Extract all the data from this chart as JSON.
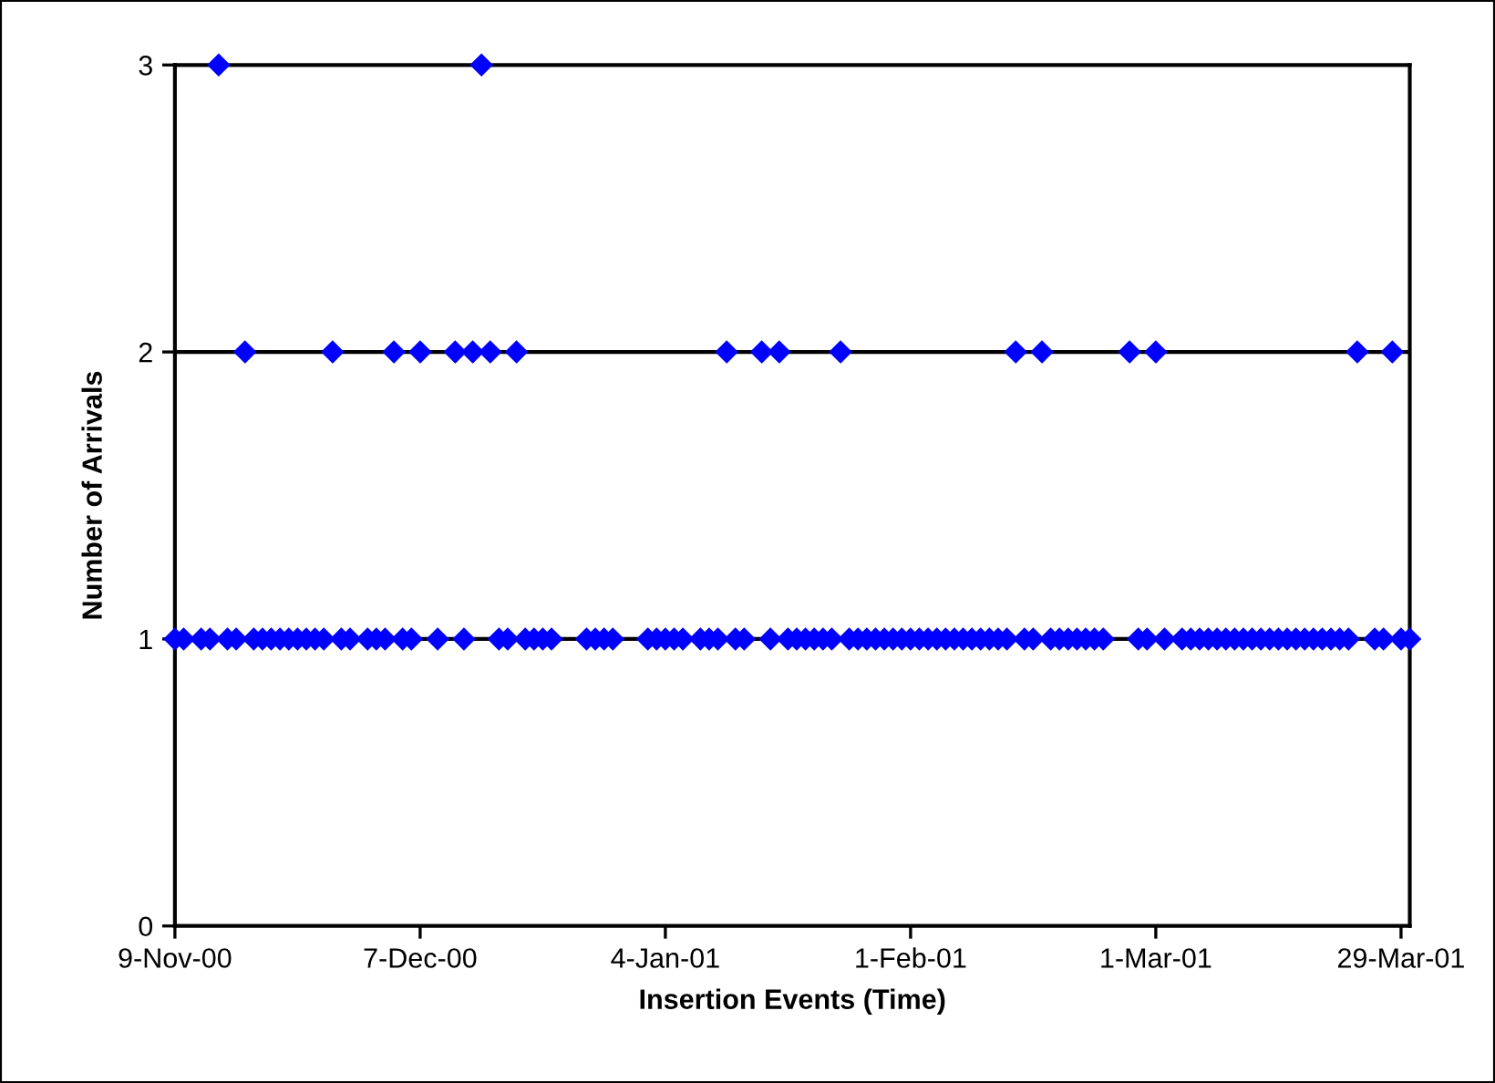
{
  "chart_data": {
    "type": "scatter",
    "xlabel": "Insertion Events (Time)",
    "ylabel": "Number of Arrivals",
    "xlim": [
      "2000-11-09",
      "2001-03-30"
    ],
    "xticks": [
      {
        "value": "2000-11-09",
        "label": "9-Nov-00"
      },
      {
        "value": "2000-12-07",
        "label": "7-Dec-00"
      },
      {
        "value": "2001-01-04",
        "label": "4-Jan-01"
      },
      {
        "value": "2001-02-01",
        "label": "1-Feb-01"
      },
      {
        "value": "2001-03-01",
        "label": "1-Mar-01"
      },
      {
        "value": "2001-03-29",
        "label": "29-Mar-01"
      }
    ],
    "ylim": [
      0,
      3
    ],
    "yticks": [
      0,
      1,
      2,
      3
    ],
    "grid": "y",
    "legend": false,
    "marker": "diamond",
    "series": [
      {
        "color": "#0000ff",
        "x": [
          "2000-11-09",
          "2000-11-10",
          "2000-11-12",
          "2000-11-13",
          "2000-11-14",
          "2000-11-15",
          "2000-11-16",
          "2000-11-17",
          "2000-11-18",
          "2000-11-19",
          "2000-11-20",
          "2000-11-21",
          "2000-11-22",
          "2000-11-23",
          "2000-11-24",
          "2000-11-25",
          "2000-11-26",
          "2000-11-27",
          "2000-11-28",
          "2000-11-29",
          "2000-12-01",
          "2000-12-02",
          "2000-12-03",
          "2000-12-04",
          "2000-12-05",
          "2000-12-06",
          "2000-12-07",
          "2000-12-09",
          "2000-12-11",
          "2000-12-12",
          "2000-12-13",
          "2000-12-14",
          "2000-12-15",
          "2000-12-16",
          "2000-12-17",
          "2000-12-18",
          "2000-12-19",
          "2000-12-20",
          "2000-12-21",
          "2000-12-22",
          "2000-12-26",
          "2000-12-27",
          "2000-12-28",
          "2000-12-29",
          "2001-01-02",
          "2001-01-03",
          "2001-01-04",
          "2001-01-05",
          "2001-01-06",
          "2001-01-08",
          "2001-01-09",
          "2001-01-10",
          "2001-01-11",
          "2001-01-12",
          "2001-01-13",
          "2001-01-15",
          "2001-01-16",
          "2001-01-17",
          "2001-01-18",
          "2001-01-19",
          "2001-01-20",
          "2001-01-21",
          "2001-01-22",
          "2001-01-23",
          "2001-01-24",
          "2001-01-25",
          "2001-01-26",
          "2001-01-27",
          "2001-01-28",
          "2001-01-29",
          "2001-01-30",
          "2001-01-31",
          "2001-02-01",
          "2001-02-02",
          "2001-02-03",
          "2001-02-04",
          "2001-02-05",
          "2001-02-06",
          "2001-02-07",
          "2001-02-08",
          "2001-02-09",
          "2001-02-10",
          "2001-02-11",
          "2001-02-12",
          "2001-02-13",
          "2001-02-14",
          "2001-02-15",
          "2001-02-16",
          "2001-02-17",
          "2001-02-18",
          "2001-02-19",
          "2001-02-20",
          "2001-02-21",
          "2001-02-22",
          "2001-02-23",
          "2001-02-26",
          "2001-02-27",
          "2001-02-28",
          "2001-03-01",
          "2001-03-02",
          "2001-03-04",
          "2001-03-05",
          "2001-03-06",
          "2001-03-07",
          "2001-03-08",
          "2001-03-09",
          "2001-03-10",
          "2001-03-11",
          "2001-03-12",
          "2001-03-13",
          "2001-03-14",
          "2001-03-15",
          "2001-03-16",
          "2001-03-17",
          "2001-03-18",
          "2001-03-19",
          "2001-03-20",
          "2001-03-21",
          "2001-03-22",
          "2001-03-23",
          "2001-03-24",
          "2001-03-26",
          "2001-03-27",
          "2001-03-28",
          "2001-03-29",
          "2001-03-30"
        ],
        "values": [
          1,
          1,
          1,
          1,
          3,
          1,
          1,
          2,
          1,
          1,
          1,
          1,
          1,
          1,
          1,
          1,
          1,
          2,
          1,
          1,
          1,
          1,
          1,
          2,
          1,
          1,
          2,
          1,
          2,
          1,
          2,
          3,
          2,
          1,
          1,
          2,
          1,
          1,
          1,
          1,
          1,
          1,
          1,
          1,
          1,
          1,
          1,
          1,
          1,
          1,
          1,
          1,
          2,
          1,
          1,
          2,
          1,
          2,
          1,
          1,
          1,
          1,
          1,
          1,
          2,
          1,
          1,
          1,
          1,
          1,
          1,
          1,
          1,
          1,
          1,
          1,
          1,
          1,
          1,
          1,
          1,
          1,
          1,
          1,
          2,
          1,
          1,
          2,
          1,
          1,
          1,
          1,
          1,
          1,
          1,
          2,
          1,
          1,
          2,
          1,
          1,
          1,
          1,
          1,
          1,
          1,
          1,
          1,
          1,
          1,
          1,
          1,
          1,
          1,
          1,
          1,
          1,
          1,
          1,
          1,
          2,
          1,
          1,
          2,
          1,
          1
        ]
      }
    ]
  }
}
